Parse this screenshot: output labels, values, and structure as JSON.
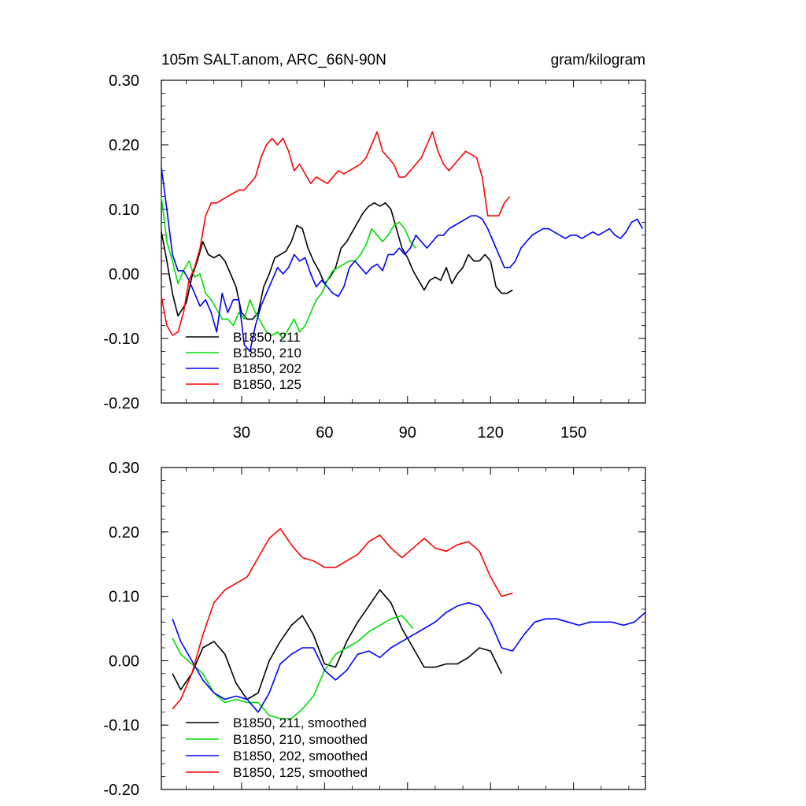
{
  "header": {
    "left": "105m SALT.anom, ARC_66N-90N",
    "right": "gram/kilogram"
  },
  "chart_data": [
    {
      "type": "line",
      "xlim": [
        1,
        176
      ],
      "ylim": [
        -0.2,
        0.3
      ],
      "yticks": [
        -0.2,
        -0.1,
        0.0,
        0.1,
        0.2,
        0.3
      ],
      "ytick_labels": [
        "-0.20",
        "-0.10",
        "0.00",
        "0.10",
        "0.20",
        "0.30"
      ],
      "xticks": [
        30,
        60,
        90,
        120,
        150
      ],
      "xtick_labels": [
        "30",
        "60",
        "90",
        "120",
        "150"
      ],
      "legend_position": "bottom-left",
      "series": [
        {
          "name": "B1850, 211",
          "color": "#000000",
          "x": [
            1,
            3,
            5,
            7,
            10,
            12,
            14,
            16,
            18,
            20,
            22,
            24,
            26,
            28,
            30,
            32,
            34,
            36,
            38,
            40,
            42,
            44,
            46,
            48,
            50,
            52,
            54,
            56,
            58,
            60,
            62,
            64,
            66,
            68,
            70,
            72,
            74,
            76,
            78,
            80,
            82,
            84,
            86,
            88,
            90,
            92,
            94,
            96,
            98,
            100,
            102,
            104,
            106,
            108,
            110,
            112,
            114,
            116,
            118,
            120,
            122,
            124,
            126,
            128
          ],
          "y": [
            0.065,
            0.02,
            -0.03,
            -0.065,
            -0.045,
            -0.005,
            0.02,
            0.05,
            0.03,
            0.025,
            0.03,
            0.02,
            0.0,
            -0.02,
            -0.06,
            -0.07,
            -0.07,
            -0.06,
            -0.02,
            0.0,
            0.025,
            0.03,
            0.035,
            0.05,
            0.075,
            0.07,
            0.04,
            0.02,
            0.005,
            -0.015,
            -0.005,
            0.01,
            0.04,
            0.05,
            0.065,
            0.08,
            0.095,
            0.105,
            0.11,
            0.105,
            0.11,
            0.1,
            0.07,
            0.04,
            0.025,
            0.005,
            -0.01,
            -0.025,
            -0.01,
            -0.005,
            -0.01,
            0.01,
            -0.015,
            0.0,
            0.01,
            0.03,
            0.02,
            0.02,
            0.03,
            0.02,
            -0.02,
            -0.03,
            -0.03,
            -0.025
          ]
        },
        {
          "name": "B1850, 210",
          "color": "#00dd00",
          "x": [
            1,
            3,
            5,
            7,
            9,
            11,
            13,
            15,
            17,
            19,
            21,
            23,
            25,
            27,
            29,
            31,
            33,
            35,
            37,
            39,
            41,
            43,
            45,
            47,
            49,
            51,
            53,
            55,
            57,
            59,
            61,
            63,
            65,
            67,
            69,
            71,
            73,
            75,
            77,
            79,
            81,
            83,
            85,
            87,
            89,
            91,
            93
          ],
          "y": [
            0.12,
            0.05,
            0.02,
            -0.015,
            0.005,
            0.02,
            -0.005,
            0.0,
            -0.03,
            -0.04,
            -0.055,
            -0.07,
            -0.07,
            -0.08,
            -0.06,
            -0.07,
            -0.04,
            -0.06,
            -0.075,
            -0.09,
            -0.095,
            -0.09,
            -0.1,
            -0.085,
            -0.07,
            -0.09,
            -0.08,
            -0.06,
            -0.04,
            -0.03,
            -0.01,
            0.005,
            0.01,
            0.015,
            0.02,
            0.02,
            0.03,
            0.045,
            0.07,
            0.06,
            0.05,
            0.06,
            0.075,
            0.08,
            0.07,
            0.05,
            0.04
          ]
        },
        {
          "name": "B1850, 202",
          "color": "#0000ff",
          "x": [
            1,
            3,
            5,
            7,
            9,
            11,
            13,
            15,
            17,
            19,
            21,
            23,
            25,
            27,
            29,
            31,
            33,
            35,
            37,
            39,
            41,
            43,
            45,
            47,
            49,
            51,
            53,
            55,
            57,
            59,
            61,
            63,
            65,
            67,
            69,
            71,
            73,
            75,
            77,
            79,
            81,
            83,
            85,
            87,
            89,
            91,
            93,
            95,
            97,
            99,
            101,
            103,
            105,
            107,
            109,
            111,
            113,
            115,
            117,
            119,
            121,
            123,
            125,
            127,
            129,
            131,
            133,
            135,
            137,
            139,
            141,
            143,
            145,
            147,
            149,
            151,
            153,
            155,
            157,
            159,
            161,
            163,
            165,
            167,
            169,
            171,
            173,
            175
          ],
          "y": [
            0.165,
            0.1,
            0.03,
            0.005,
            0.005,
            -0.01,
            -0.03,
            -0.05,
            -0.04,
            -0.06,
            -0.09,
            -0.03,
            -0.06,
            -0.04,
            -0.04,
            -0.11,
            -0.12,
            -0.08,
            -0.05,
            -0.03,
            -0.01,
            0.01,
            0.0,
            0.01,
            0.03,
            0.02,
            0.025,
            0.0,
            -0.02,
            -0.01,
            -0.02,
            -0.03,
            -0.035,
            -0.02,
            0.01,
            0.02,
            0.01,
            0.0,
            0.01,
            0.015,
            0.005,
            0.03,
            0.03,
            0.04,
            0.03,
            0.04,
            0.06,
            0.05,
            0.04,
            0.05,
            0.06,
            0.06,
            0.07,
            0.075,
            0.08,
            0.085,
            0.09,
            0.09,
            0.085,
            0.07,
            0.05,
            0.03,
            0.01,
            0.01,
            0.02,
            0.04,
            0.05,
            0.06,
            0.065,
            0.07,
            0.07,
            0.065,
            0.06,
            0.055,
            0.06,
            0.06,
            0.055,
            0.06,
            0.065,
            0.06,
            0.065,
            0.07,
            0.06,
            0.055,
            0.065,
            0.08,
            0.085,
            0.07
          ]
        },
        {
          "name": "B1850, 125",
          "color": "#ff0000",
          "x": [
            1,
            3,
            5,
            7,
            9,
            11,
            13,
            15,
            17,
            19,
            21,
            23,
            25,
            27,
            29,
            31,
            33,
            35,
            37,
            39,
            41,
            43,
            45,
            47,
            49,
            51,
            53,
            55,
            57,
            59,
            61,
            63,
            65,
            67,
            69,
            71,
            73,
            75,
            77,
            79,
            81,
            83,
            85,
            87,
            89,
            91,
            93,
            95,
            97,
            99,
            101,
            103,
            105,
            107,
            109,
            111,
            113,
            115,
            117,
            119,
            121,
            123,
            125,
            127
          ],
          "y": [
            -0.035,
            -0.08,
            -0.095,
            -0.09,
            -0.06,
            -0.01,
            0.01,
            0.04,
            0.09,
            0.11,
            0.11,
            0.115,
            0.12,
            0.125,
            0.13,
            0.13,
            0.14,
            0.15,
            0.18,
            0.2,
            0.21,
            0.2,
            0.21,
            0.19,
            0.16,
            0.17,
            0.155,
            0.14,
            0.15,
            0.145,
            0.14,
            0.15,
            0.16,
            0.155,
            0.16,
            0.165,
            0.17,
            0.18,
            0.2,
            0.22,
            0.19,
            0.18,
            0.17,
            0.15,
            0.15,
            0.16,
            0.17,
            0.18,
            0.2,
            0.22,
            0.19,
            0.17,
            0.16,
            0.17,
            0.18,
            0.19,
            0.185,
            0.18,
            0.15,
            0.09,
            0.09,
            0.09,
            0.11,
            0.12
          ]
        }
      ]
    },
    {
      "type": "line",
      "xlim": [
        1,
        176
      ],
      "ylim": [
        -0.2,
        0.3
      ],
      "yticks": [
        -0.2,
        -0.1,
        0.0,
        0.1,
        0.2,
        0.3
      ],
      "ytick_labels": [
        "-0.20",
        "-0.10",
        "0.00",
        "0.10",
        "0.20",
        "0.30"
      ],
      "xticks": [
        30,
        60,
        90,
        120,
        150
      ],
      "legend_position": "bottom-left",
      "series": [
        {
          "name": "B1850, 211, smoothed",
          "color": "#000000",
          "x": [
            5,
            8,
            12,
            16,
            20,
            24,
            28,
            32,
            36,
            40,
            44,
            48,
            52,
            56,
            60,
            64,
            68,
            72,
            76,
            80,
            84,
            88,
            92,
            96,
            100,
            104,
            108,
            112,
            116,
            120,
            124
          ],
          "y": [
            -0.02,
            -0.045,
            -0.02,
            0.02,
            0.03,
            0.01,
            -0.035,
            -0.06,
            -0.05,
            0.0,
            0.03,
            0.055,
            0.07,
            0.04,
            -0.005,
            -0.01,
            0.03,
            0.06,
            0.085,
            0.11,
            0.09,
            0.05,
            0.02,
            -0.01,
            -0.01,
            -0.005,
            -0.005,
            0.005,
            0.02,
            0.015,
            -0.02
          ]
        },
        {
          "name": "B1850, 210, smoothed",
          "color": "#00dd00",
          "x": [
            5,
            8,
            12,
            16,
            20,
            24,
            28,
            32,
            36,
            40,
            44,
            48,
            52,
            56,
            60,
            64,
            68,
            72,
            76,
            80,
            84,
            88,
            92
          ],
          "y": [
            0.035,
            0.01,
            -0.005,
            -0.02,
            -0.05,
            -0.065,
            -0.06,
            -0.065,
            -0.065,
            -0.085,
            -0.09,
            -0.09,
            -0.075,
            -0.055,
            -0.015,
            0.01,
            0.02,
            0.03,
            0.045,
            0.055,
            0.065,
            0.07,
            0.05
          ]
        },
        {
          "name": "B1850, 202, smoothed",
          "color": "#0000ff",
          "x": [
            5,
            8,
            12,
            16,
            20,
            24,
            28,
            32,
            36,
            40,
            44,
            48,
            52,
            56,
            60,
            64,
            68,
            72,
            76,
            80,
            84,
            88,
            92,
            96,
            100,
            104,
            108,
            112,
            116,
            120,
            124,
            128,
            132,
            136,
            140,
            144,
            148,
            152,
            156,
            160,
            164,
            168,
            172,
            176
          ],
          "y": [
            0.065,
            0.03,
            0.0,
            -0.03,
            -0.05,
            -0.06,
            -0.055,
            -0.06,
            -0.08,
            -0.05,
            -0.005,
            0.01,
            0.02,
            0.02,
            -0.015,
            -0.03,
            -0.015,
            0.01,
            0.015,
            0.005,
            0.02,
            0.03,
            0.04,
            0.05,
            0.06,
            0.075,
            0.085,
            0.09,
            0.085,
            0.06,
            0.02,
            0.015,
            0.04,
            0.06,
            0.065,
            0.065,
            0.06,
            0.055,
            0.06,
            0.06,
            0.06,
            0.055,
            0.06,
            0.075
          ]
        },
        {
          "name": "B1850, 125, smoothed",
          "color": "#ff0000",
          "x": [
            5,
            8,
            12,
            16,
            20,
            24,
            28,
            32,
            36,
            40,
            44,
            48,
            52,
            56,
            60,
            64,
            68,
            72,
            76,
            80,
            84,
            88,
            92,
            96,
            100,
            104,
            108,
            112,
            116,
            120,
            124,
            128
          ],
          "y": [
            -0.075,
            -0.06,
            -0.02,
            0.04,
            0.09,
            0.11,
            0.12,
            0.13,
            0.16,
            0.19,
            0.205,
            0.18,
            0.16,
            0.155,
            0.145,
            0.145,
            0.155,
            0.165,
            0.185,
            0.195,
            0.175,
            0.16,
            0.175,
            0.19,
            0.175,
            0.17,
            0.18,
            0.185,
            0.17,
            0.13,
            0.1,
            0.105
          ]
        }
      ]
    }
  ]
}
